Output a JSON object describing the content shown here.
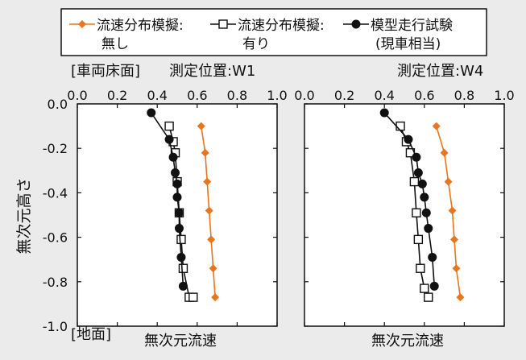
{
  "legend": [
    {
      "line1": "流速分布模擬:",
      "line2": "無し",
      "color": "#e8761e",
      "marker": "diamond"
    },
    {
      "line1": "流速分布模擬:",
      "line2": "有り",
      "color": "#111111",
      "marker": "square-open"
    },
    {
      "line1": "模型走行試験",
      "line2": "(現車相当)",
      "color": "#111111",
      "marker": "circle"
    }
  ],
  "ylabel": "無次元高さ",
  "top_label": "[車両床面]",
  "bottom_label": "[地面]",
  "chart_data": [
    {
      "type": "line",
      "title": "測定位置:W1",
      "xlabel": "無次元流速",
      "xlim": [
        0,
        1.0
      ],
      "ylim": [
        -1.0,
        0
      ],
      "xticks": [
        "0.0",
        "0.2",
        "0.4",
        "0.6",
        "0.8",
        "1.0"
      ],
      "yticks": [
        "0.0",
        "-0.2",
        "-0.4",
        "-0.6",
        "-0.8",
        "-1.0"
      ],
      "series": [
        {
          "name": "流速分布模擬:無し",
          "color": "#e8761e",
          "marker": "diamond",
          "x": [
            0.62,
            0.64,
            0.65,
            0.66,
            0.67,
            0.68,
            0.69
          ],
          "y": [
            -0.1,
            -0.22,
            -0.35,
            -0.48,
            -0.61,
            -0.74,
            -0.87
          ]
        },
        {
          "name": "流速分布模擬:有り",
          "color": "#111111",
          "marker": "square-open",
          "x": [
            0.46,
            0.48,
            0.49,
            0.5,
            0.51,
            0.52,
            0.53,
            0.56,
            0.58
          ],
          "y": [
            -0.1,
            -0.17,
            -0.22,
            -0.35,
            -0.49,
            -0.61,
            -0.74,
            -0.87,
            -0.87
          ]
        },
        {
          "name": "模型走行試験(現車相当)",
          "color": "#111111",
          "marker": "circle",
          "x": [
            0.37,
            0.46,
            0.48,
            0.49,
            0.5,
            0.5,
            0.51,
            0.51,
            0.52,
            0.53
          ],
          "y": [
            -0.04,
            -0.16,
            -0.24,
            -0.31,
            -0.36,
            -0.42,
            -0.49,
            -0.56,
            -0.69,
            -0.82
          ]
        }
      ]
    },
    {
      "type": "line",
      "title": "測定位置:W4",
      "xlabel": "無次元流速",
      "xlim": [
        0,
        1.0
      ],
      "ylim": [
        -1.0,
        0
      ],
      "xticks": [
        "0.0",
        "0.2",
        "0.4",
        "0.6",
        "0.8",
        "1.0"
      ],
      "yticks": [
        "0.0",
        "-0.2",
        "-0.4",
        "-0.6",
        "-0.8",
        "-1.0"
      ],
      "series": [
        {
          "name": "流速分布模擬:無し",
          "color": "#e8761e",
          "marker": "diamond",
          "x": [
            0.66,
            0.7,
            0.72,
            0.74,
            0.75,
            0.76,
            0.78
          ],
          "y": [
            -0.1,
            -0.22,
            -0.35,
            -0.48,
            -0.61,
            -0.74,
            -0.87
          ]
        },
        {
          "name": "流速分布模擬:有り",
          "color": "#111111",
          "marker": "square-open",
          "x": [
            0.48,
            0.51,
            0.53,
            0.55,
            0.56,
            0.57,
            0.58,
            0.6,
            0.62
          ],
          "y": [
            -0.1,
            -0.17,
            -0.22,
            -0.35,
            -0.49,
            -0.61,
            -0.74,
            -0.83,
            -0.87
          ]
        },
        {
          "name": "模型走行試験(現車相当)",
          "color": "#111111",
          "marker": "circle",
          "x": [
            0.4,
            0.52,
            0.56,
            0.57,
            0.59,
            0.6,
            0.61,
            0.62,
            0.64,
            0.65
          ],
          "y": [
            -0.04,
            -0.16,
            -0.24,
            -0.31,
            -0.36,
            -0.42,
            -0.49,
            -0.56,
            -0.69,
            -0.82
          ]
        }
      ]
    }
  ]
}
